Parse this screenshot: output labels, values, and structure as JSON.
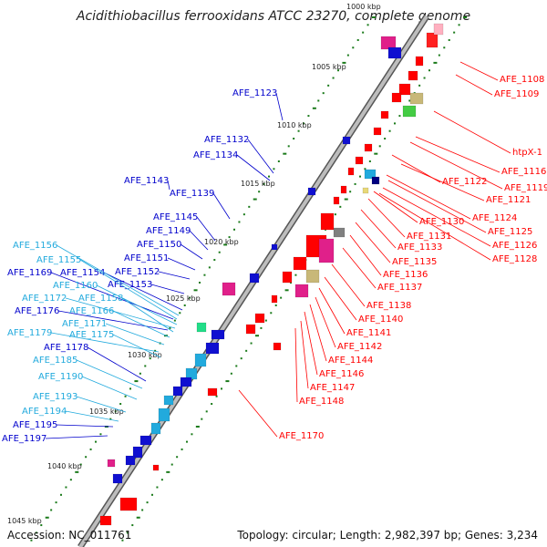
{
  "title": "Acidithiobacillus ferrooxidans ATCC 23270, complete genome",
  "footer": {
    "accession": "Accession: NC_011761",
    "topology": "Topology: circular; Length: 2,982,397 bp; Genes: 3,234"
  },
  "colors": {
    "backbone": "#888888",
    "forward_strand_label": "#ff0000",
    "reverse_strand_label": "#0000cc",
    "reverse_light_label": "#22aadd",
    "tick": "#1a7a1a"
  },
  "scale_labels": [
    "1000 kbp",
    "1005 kbp",
    "1010 kbp",
    "1015 kbp",
    "1020 kbp",
    "1025 kbp",
    "1030 kbp",
    "1035 kbp",
    "1040 kbp",
    "1045 kbp"
  ],
  "right_labels": [
    "AFE_1108",
    "AFE_1109",
    "htpX-1",
    "AFE_1116",
    "AFE_1119",
    "AFE_1122",
    "AFE_1121",
    "AFE_1124",
    "AFE_1125",
    "AFE_1130",
    "AFE_1126",
    "AFE_1128",
    "AFE_1131",
    "AFE_1133",
    "AFE_1135",
    "AFE_1136",
    "AFE_1137",
    "AFE_1138",
    "AFE_1140",
    "AFE_1141",
    "AFE_1142",
    "AFE_1144",
    "AFE_1146",
    "AFE_1147",
    "AFE_1148",
    "AFE_1170"
  ],
  "left_labels": [
    "AFE_1123",
    "AFE_1132",
    "AFE_1134",
    "AFE_1143",
    "AFE_1139",
    "AFE_1145",
    "AFE_1149",
    "AFE_1150",
    "AFE_1151",
    "AFE_1152",
    "AFE_1153",
    "AFE_1154",
    "AFE_1169",
    "AFE_1176",
    "AFE_1178",
    "AFE_1195",
    "AFE_1197"
  ],
  "left_light_labels": [
    "AFE_1156",
    "AFE_1155",
    "AFE_1160",
    "AFE_1172",
    "AFE_1158",
    "AFE_1166",
    "AFE_1171",
    "AFE_1179",
    "AFE_1175",
    "AFE_1185",
    "AFE_1190",
    "AFE_1193",
    "AFE_1194"
  ]
}
